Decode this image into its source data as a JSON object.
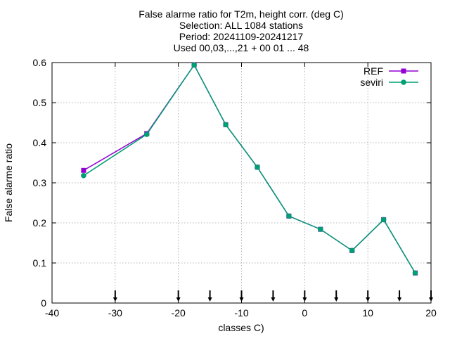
{
  "chart_data": {
    "type": "line",
    "title_lines": [
      "False alarme ratio  for T2m, height corr. (deg C)",
      "Selection: ALL    1084 stations",
      "Period: 20241109-20241217",
      "Used 00,03,...,21 + 00 01 ... 48"
    ],
    "xlabel": "classes C)",
    "ylabel": "False alarme ratio",
    "xlim": [
      -40,
      20
    ],
    "ylim": [
      0,
      0.6
    ],
    "xticks": [
      -40,
      -30,
      -20,
      -10,
      0,
      10,
      20
    ],
    "yticks": [
      0,
      0.1,
      0.2,
      0.3,
      0.4,
      0.5,
      0.6
    ],
    "xtick_labels": [
      "-40",
      "-30",
      "-20",
      "-10",
      "0",
      "10",
      "20"
    ],
    "ytick_labels": [
      "0",
      "0.1",
      "0.2",
      "0.3",
      "0.4",
      "0.5",
      "0.6"
    ],
    "grid": true,
    "legend_position": "top-right",
    "arrow_marks_x": [
      -30,
      -20,
      -15,
      -10,
      -5,
      0,
      5,
      10,
      15,
      20
    ],
    "series": [
      {
        "name": "REF",
        "color": "#9400d3",
        "x": [
          -35,
          -25,
          -17.5,
          -12.5,
          -7.5,
          -2.5,
          2.5,
          7.5,
          12.5,
          17.5
        ],
        "y": [
          0.331,
          0.423,
          0.594,
          0.445,
          0.339,
          0.217,
          0.184,
          0.131,
          0.208,
          0.075
        ]
      },
      {
        "name": "seviri",
        "color": "#009e73",
        "x": [
          -35,
          -25,
          -17.5,
          -12.5,
          -7.5,
          -2.5,
          2.5,
          7.5,
          12.5,
          17.5
        ],
        "y": [
          0.318,
          0.421,
          0.594,
          0.445,
          0.339,
          0.217,
          0.184,
          0.131,
          0.208,
          0.075
        ]
      }
    ]
  }
}
